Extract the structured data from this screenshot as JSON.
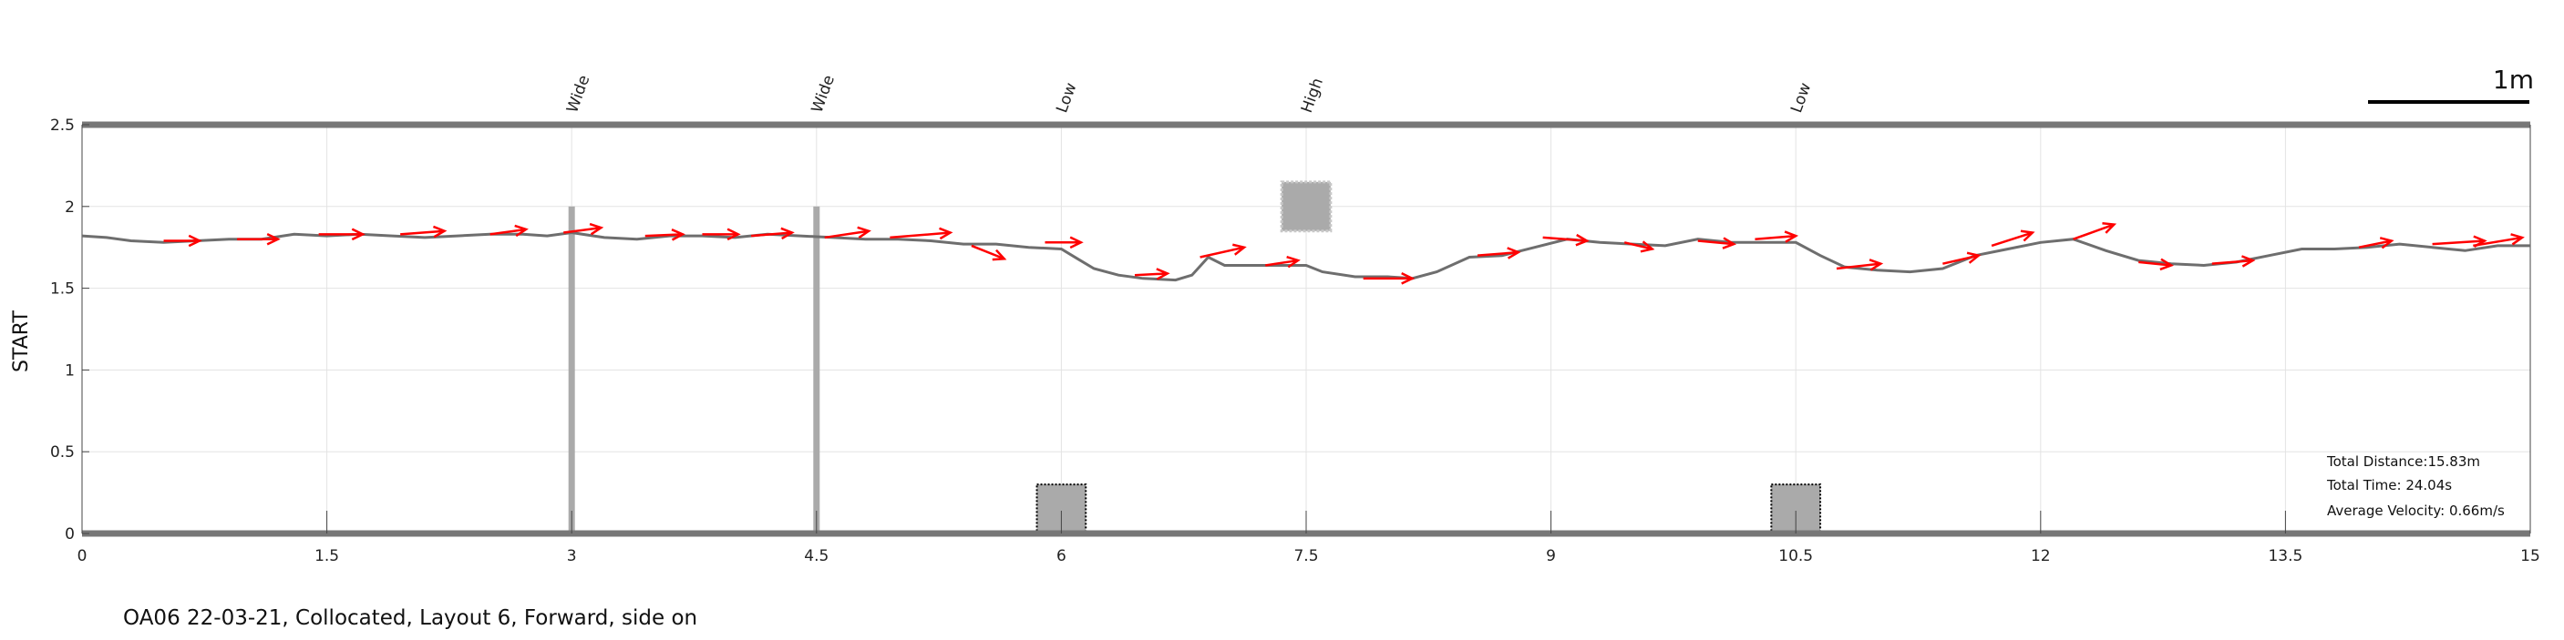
{
  "caption": "OA06 22-03-21, Collocated, Layout 6, Forward, side on",
  "scale_bar_label": "1m",
  "stats": {
    "distance": "Total Distance:15.83m",
    "time": "Total Time: 24.04s",
    "velocity": "Average Velocity: 0.66m/s"
  },
  "colors": {
    "trajectory": "#6e6e6e",
    "arrows": "#ff0000",
    "obstacles": "#aaaaaa",
    "walls": "#777777",
    "grid": "#e3e3e3"
  },
  "chart_data": {
    "type": "line",
    "ylabel": "START",
    "xlabel": "",
    "xlim": [
      0,
      15
    ],
    "ylim": [
      0,
      2.5
    ],
    "x_ticks": [
      0,
      1.5,
      3,
      4.5,
      6,
      7.5,
      9,
      10.5,
      12,
      13.5,
      15
    ],
    "x_tick_labels": [
      "0",
      "1.5",
      "3",
      "4.5",
      "6",
      "7.5",
      "9",
      "10.5",
      "12",
      "13.5",
      "15"
    ],
    "y_ticks": [
      0,
      0.5,
      1,
      1.5,
      2,
      2.5
    ],
    "y_tick_labels": [
      "0",
      "0.5",
      "1",
      "1.5",
      "2",
      "2.5"
    ],
    "grid": true,
    "trajectory": [
      [
        0,
        1.82
      ],
      [
        0.15,
        1.81
      ],
      [
        0.3,
        1.79
      ],
      [
        0.5,
        1.78
      ],
      [
        0.7,
        1.79
      ],
      [
        0.9,
        1.8
      ],
      [
        1.1,
        1.8
      ],
      [
        1.3,
        1.83
      ],
      [
        1.5,
        1.82
      ],
      [
        1.7,
        1.83
      ],
      [
        1.9,
        1.82
      ],
      [
        2.1,
        1.81
      ],
      [
        2.3,
        1.82
      ],
      [
        2.5,
        1.83
      ],
      [
        2.7,
        1.83
      ],
      [
        2.85,
        1.82
      ],
      [
        3.0,
        1.84
      ],
      [
        3.2,
        1.81
      ],
      [
        3.4,
        1.8
      ],
      [
        3.6,
        1.82
      ],
      [
        3.8,
        1.82
      ],
      [
        4.0,
        1.81
      ],
      [
        4.2,
        1.83
      ],
      [
        4.4,
        1.82
      ],
      [
        4.6,
        1.81
      ],
      [
        4.8,
        1.8
      ],
      [
        5.0,
        1.8
      ],
      [
        5.2,
        1.79
      ],
      [
        5.4,
        1.77
      ],
      [
        5.6,
        1.77
      ],
      [
        5.8,
        1.75
      ],
      [
        6.0,
        1.74
      ],
      [
        6.1,
        1.68
      ],
      [
        6.2,
        1.62
      ],
      [
        6.35,
        1.58
      ],
      [
        6.5,
        1.56
      ],
      [
        6.7,
        1.55
      ],
      [
        6.8,
        1.58
      ],
      [
        6.9,
        1.69
      ],
      [
        7.0,
        1.64
      ],
      [
        7.2,
        1.64
      ],
      [
        7.5,
        1.64
      ],
      [
        7.6,
        1.6
      ],
      [
        7.8,
        1.57
      ],
      [
        8.0,
        1.57
      ],
      [
        8.15,
        1.56
      ],
      [
        8.3,
        1.6
      ],
      [
        8.5,
        1.69
      ],
      [
        8.7,
        1.7
      ],
      [
        8.9,
        1.75
      ],
      [
        9.1,
        1.8
      ],
      [
        9.3,
        1.78
      ],
      [
        9.5,
        1.77
      ],
      [
        9.7,
        1.76
      ],
      [
        9.9,
        1.8
      ],
      [
        10.1,
        1.78
      ],
      [
        10.3,
        1.78
      ],
      [
        10.5,
        1.78
      ],
      [
        10.65,
        1.7
      ],
      [
        10.8,
        1.63
      ],
      [
        11.0,
        1.61
      ],
      [
        11.2,
        1.6
      ],
      [
        11.4,
        1.62
      ],
      [
        11.6,
        1.7
      ],
      [
        11.8,
        1.74
      ],
      [
        12.0,
        1.78
      ],
      [
        12.2,
        1.8
      ],
      [
        12.4,
        1.73
      ],
      [
        12.6,
        1.67
      ],
      [
        12.8,
        1.65
      ],
      [
        13.0,
        1.64
      ],
      [
        13.2,
        1.66
      ],
      [
        13.4,
        1.7
      ],
      [
        13.6,
        1.74
      ],
      [
        13.8,
        1.74
      ],
      [
        14.0,
        1.75
      ],
      [
        14.2,
        1.77
      ],
      [
        14.4,
        1.75
      ],
      [
        14.6,
        1.73
      ],
      [
        14.8,
        1.76
      ],
      [
        15.0,
        1.76
      ]
    ],
    "velocity_arrows": [
      [
        0.5,
        1.79,
        0.72,
        1.79
      ],
      [
        0.95,
        1.8,
        1.2,
        1.8
      ],
      [
        1.45,
        1.83,
        1.72,
        1.83
      ],
      [
        1.95,
        1.83,
        2.22,
        1.85
      ],
      [
        2.5,
        1.83,
        2.72,
        1.86
      ],
      [
        2.95,
        1.84,
        3.18,
        1.87
      ],
      [
        3.45,
        1.82,
        3.68,
        1.83
      ],
      [
        3.8,
        1.83,
        4.02,
        1.83
      ],
      [
        4.1,
        1.82,
        4.35,
        1.84
      ],
      [
        4.55,
        1.81,
        4.82,
        1.85
      ],
      [
        4.95,
        1.81,
        5.32,
        1.84
      ],
      [
        5.45,
        1.76,
        5.65,
        1.68
      ],
      [
        5.9,
        1.78,
        6.12,
        1.78
      ],
      [
        6.45,
        1.58,
        6.65,
        1.59
      ],
      [
        6.85,
        1.69,
        7.12,
        1.75
      ],
      [
        7.25,
        1.64,
        7.45,
        1.67
      ],
      [
        7.85,
        1.56,
        8.15,
        1.56
      ],
      [
        8.55,
        1.7,
        8.8,
        1.72
      ],
      [
        8.95,
        1.81,
        9.22,
        1.79
      ],
      [
        9.45,
        1.78,
        9.62,
        1.74
      ],
      [
        9.9,
        1.79,
        10.12,
        1.77
      ],
      [
        10.25,
        1.8,
        10.5,
        1.82
      ],
      [
        10.75,
        1.62,
        11.02,
        1.65
      ],
      [
        11.4,
        1.65,
        11.62,
        1.7
      ],
      [
        11.7,
        1.76,
        11.95,
        1.84
      ],
      [
        12.2,
        1.8,
        12.45,
        1.89
      ],
      [
        12.6,
        1.66,
        12.8,
        1.64
      ],
      [
        13.05,
        1.65,
        13.3,
        1.67
      ],
      [
        13.95,
        1.75,
        14.15,
        1.79
      ],
      [
        14.4,
        1.77,
        14.72,
        1.79
      ],
      [
        14.65,
        1.76,
        14.95,
        1.81
      ]
    ],
    "obstacles": [
      {
        "label": "Wide",
        "x": 3.0,
        "kind": "pole",
        "y_bottom": 0,
        "y_top": 2.0
      },
      {
        "label": "Wide",
        "x": 4.5,
        "kind": "pole",
        "y_bottom": 0,
        "y_top": 2.0
      },
      {
        "label": "Low",
        "x": 6.0,
        "kind": "low-box",
        "x_range": [
          5.85,
          6.15
        ],
        "y_range": [
          0,
          0.3
        ]
      },
      {
        "label": "High",
        "x": 7.5,
        "kind": "high-box",
        "x_range": [
          7.35,
          7.65
        ],
        "y_range": [
          1.85,
          2.15
        ]
      },
      {
        "label": "Low",
        "x": 10.5,
        "kind": "low-box",
        "x_range": [
          10.35,
          10.65
        ],
        "y_range": [
          0,
          0.3
        ]
      }
    ]
  }
}
